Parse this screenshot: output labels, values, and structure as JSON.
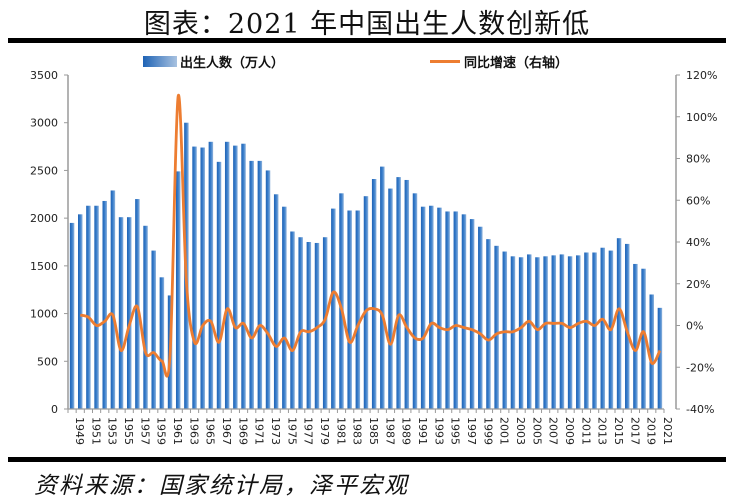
{
  "page": {
    "title": "图表：2021 年中国出生人数创新低",
    "source": "资料来源：国家统计局，泽平宏观"
  },
  "chart_data": {
    "type": "bar+line",
    "title": "图表：2021 年中国出生人数创新低",
    "x": [
      1949,
      1950,
      1951,
      1952,
      1953,
      1954,
      1955,
      1956,
      1957,
      1958,
      1959,
      1960,
      1961,
      1962,
      1963,
      1964,
      1965,
      1966,
      1967,
      1968,
      1969,
      1970,
      1971,
      1972,
      1973,
      1974,
      1975,
      1976,
      1977,
      1978,
      1979,
      1980,
      1981,
      1982,
      1983,
      1984,
      1985,
      1986,
      1987,
      1988,
      1989,
      1990,
      1991,
      1992,
      1993,
      1994,
      1995,
      1996,
      1997,
      1998,
      1999,
      2000,
      2001,
      2002,
      2003,
      2004,
      2005,
      2006,
      2007,
      2008,
      2009,
      2010,
      2011,
      2012,
      2013,
      2014,
      2015,
      2016,
      2017,
      2018,
      2019,
      2020,
      2021
    ],
    "x_tick_labels": [
      "1949",
      "1951",
      "1953",
      "1955",
      "1957",
      "1959",
      "1961",
      "1963",
      "1965",
      "1967",
      "1969",
      "1971",
      "1973",
      "1975",
      "1977",
      "1979",
      "1981",
      "1983",
      "1985",
      "1987",
      "1989",
      "1991",
      "1993",
      "1995",
      "1997",
      "1999",
      "2001",
      "2003",
      "2005",
      "2007",
      "2009",
      "2011",
      "2013",
      "2015",
      "2017",
      "2019",
      "2021"
    ],
    "series": [
      {
        "name": "出生人数（万人）",
        "type": "bar",
        "axis": "left",
        "color": "#2e75c4",
        "values": [
          1950,
          2040,
          2130,
          2130,
          2180,
          2290,
          2010,
          2010,
          2200,
          1920,
          1660,
          1380,
          1190,
          2490,
          3000,
          2750,
          2740,
          2800,
          2590,
          2800,
          2760,
          2780,
          2600,
          2600,
          2500,
          2250,
          2120,
          1860,
          1800,
          1750,
          1740,
          1800,
          2100,
          2260,
          2080,
          2080,
          2230,
          2410,
          2540,
          2310,
          2430,
          2400,
          2260,
          2120,
          2130,
          2110,
          2070,
          2070,
          2040,
          1990,
          1910,
          1780,
          1710,
          1650,
          1600,
          1590,
          1620,
          1590,
          1600,
          1610,
          1620,
          1600,
          1610,
          1640,
          1640,
          1690,
          1660,
          1790,
          1730,
          1520,
          1470,
          1200,
          1060
        ]
      },
      {
        "name": "同比增速（右轴）",
        "type": "line",
        "axis": "right",
        "color": "#ed7d31",
        "values": [
          null,
          0.05,
          0.04,
          0.0,
          0.02,
          0.05,
          -0.12,
          0.0,
          0.09,
          -0.13,
          -0.13,
          -0.17,
          -0.14,
          1.1,
          0.21,
          -0.08,
          0.0,
          0.02,
          -0.08,
          0.08,
          -0.01,
          0.01,
          -0.06,
          0.0,
          -0.04,
          -0.1,
          -0.06,
          -0.12,
          -0.03,
          -0.03,
          -0.01,
          0.03,
          0.16,
          0.08,
          -0.08,
          0.0,
          0.07,
          0.08,
          0.05,
          -0.09,
          0.05,
          -0.01,
          -0.06,
          -0.06,
          0.01,
          -0.01,
          -0.02,
          0.0,
          -0.01,
          -0.02,
          -0.04,
          -0.07,
          -0.04,
          -0.03,
          -0.03,
          -0.01,
          0.02,
          -0.02,
          0.01,
          0.01,
          0.01,
          -0.01,
          0.01,
          0.02,
          0.0,
          0.03,
          -0.02,
          0.08,
          -0.03,
          -0.12,
          -0.03,
          -0.18,
          -0.12
        ]
      }
    ],
    "left_axis": {
      "min": 0,
      "max": 3500,
      "ticks": [
        "0",
        "500",
        "1000",
        "1500",
        "2000",
        "2500",
        "3000",
        "3500"
      ]
    },
    "right_axis": {
      "min": -0.4,
      "max": 1.2,
      "ticks": [
        "-40%",
        "-20%",
        "0%",
        "20%",
        "40%",
        "60%",
        "80%",
        "100%",
        "120%"
      ]
    },
    "legend": {
      "position": "top",
      "items": [
        {
          "label": "出生人数（万人）",
          "icon": "bar-swatch",
          "color": "#2e75c4"
        },
        {
          "label": "同比增速（右轴）",
          "icon": "line-swatch",
          "color": "#ed7d31"
        }
      ]
    },
    "grid": false,
    "xlabel": "",
    "ylabel": ""
  }
}
